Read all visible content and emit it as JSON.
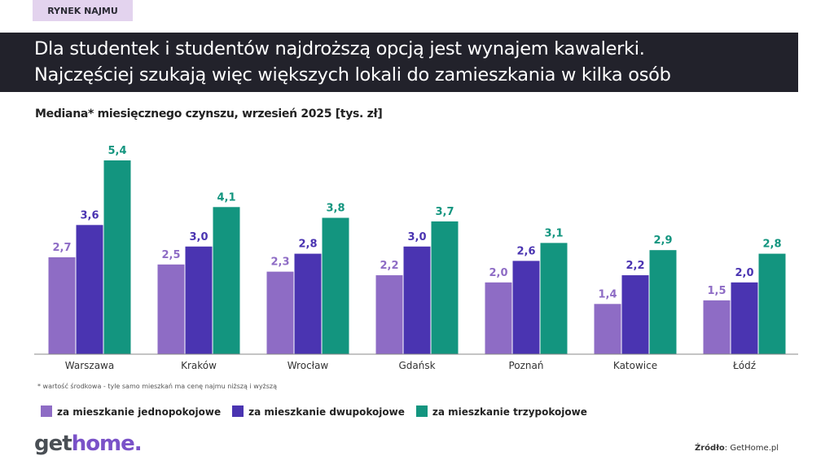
{
  "badge": "RYNEK NAJMU",
  "title_lines": [
    "Dla studentek i studentów najdroższą opcją jest wynajem kawalerki.",
    "Najczęściej szukają więc większych lokali do zamieszkania w kilka osób"
  ],
  "footnote": "* wartość środkowa  - tyle samo mieszkań ma cenę najmu niższą i wyższą",
  "logo": {
    "part1": "get",
    "part2": "home."
  },
  "source": {
    "label": "Źródło",
    "value": ": GetHome.pl"
  },
  "chart_data": {
    "type": "bar",
    "title": "Mediana* miesięcznego czynszu, wrzesień 2025 [tys. zł]",
    "categories": [
      "Warszawa",
      "Kraków",
      "Wrocław",
      "Gdańsk",
      "Poznań",
      "Katowice",
      "Łódź"
    ],
    "series": [
      {
        "name": "za mieszkanie jednopokojowe",
        "color": "#8e6cc5",
        "values": [
          2.7,
          2.5,
          2.3,
          2.2,
          2.0,
          1.4,
          1.5
        ]
      },
      {
        "name": "za mieszkanie dwupokojowe",
        "color": "#4a34b1",
        "values": [
          3.6,
          3.0,
          2.8,
          3.0,
          2.6,
          2.2,
          2.0
        ]
      },
      {
        "name": "za mieszkanie trzypokojowe",
        "color": "#13957f",
        "values": [
          5.4,
          4.1,
          3.8,
          3.7,
          3.1,
          2.9,
          2.8
        ]
      }
    ],
    "ylim": [
      0,
      5.4
    ],
    "grid": false,
    "legend": "bottom-left"
  }
}
